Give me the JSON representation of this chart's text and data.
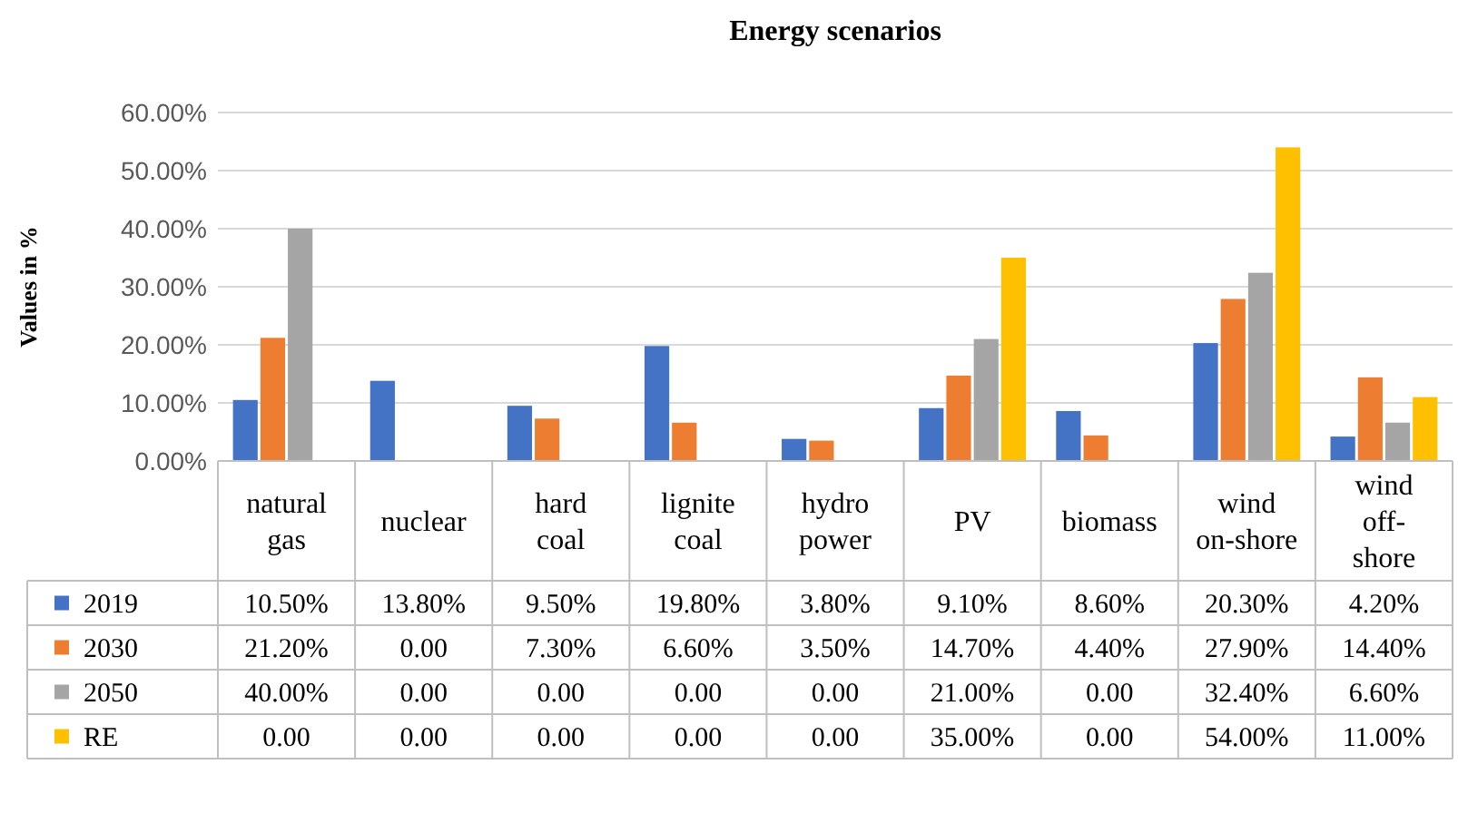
{
  "chart_data": {
    "type": "bar",
    "title": "Energy scenarios",
    "ylabel": "Values in %",
    "categories": [
      "natural gas",
      "nuclear",
      "hard coal",
      "lignite coal",
      "hydro power",
      "PV",
      "biomass",
      "wind on-shore",
      "wind off-shore"
    ],
    "series": [
      {
        "name": "2019",
        "color": "#4472c4",
        "values": [
          10.5,
          13.8,
          9.5,
          19.8,
          3.8,
          9.1,
          8.6,
          20.3,
          4.2
        ],
        "value_labels": [
          "10.50%",
          "13.80%",
          "9.50%",
          "19.80%",
          "3.80%",
          "9.10%",
          "8.60%",
          "20.30%",
          "4.20%"
        ]
      },
      {
        "name": "2030",
        "color": "#ed7d31",
        "values": [
          21.2,
          0,
          7.3,
          6.6,
          3.5,
          14.7,
          4.4,
          27.9,
          14.4
        ],
        "value_labels": [
          "21.20%",
          "0.00",
          "7.30%",
          "6.60%",
          "3.50%",
          "14.70%",
          "4.40%",
          "27.90%",
          "14.40%"
        ]
      },
      {
        "name": "2050",
        "color": "#a5a5a5",
        "values": [
          40,
          0,
          0,
          0,
          0,
          21,
          0,
          32.4,
          6.6
        ],
        "value_labels": [
          "40.00%",
          "0.00",
          "0.00",
          "0.00",
          "0.00",
          "21.00%",
          "0.00",
          "32.40%",
          "6.60%"
        ]
      },
      {
        "name": "RE",
        "color": "#ffc000",
        "values": [
          0,
          0,
          0,
          0,
          0,
          35,
          0,
          54,
          11
        ],
        "value_labels": [
          "0.00",
          "0.00",
          "0.00",
          "0.00",
          "0.00",
          "35.00%",
          "0.00",
          "54.00%",
          "11.00%"
        ]
      }
    ],
    "ylim": [
      0,
      60
    ],
    "yticks": [
      {
        "value": 0,
        "label": "0.00%"
      },
      {
        "value": 10,
        "label": "10.00%"
      },
      {
        "value": 20,
        "label": "20.00%"
      },
      {
        "value": 30,
        "label": "30.00%"
      },
      {
        "value": 40,
        "label": "40.00%"
      },
      {
        "value": 50,
        "label": "50.00%"
      },
      {
        "value": 60,
        "label": "60.00%"
      }
    ],
    "grid": "y",
    "legend": "bottom"
  }
}
